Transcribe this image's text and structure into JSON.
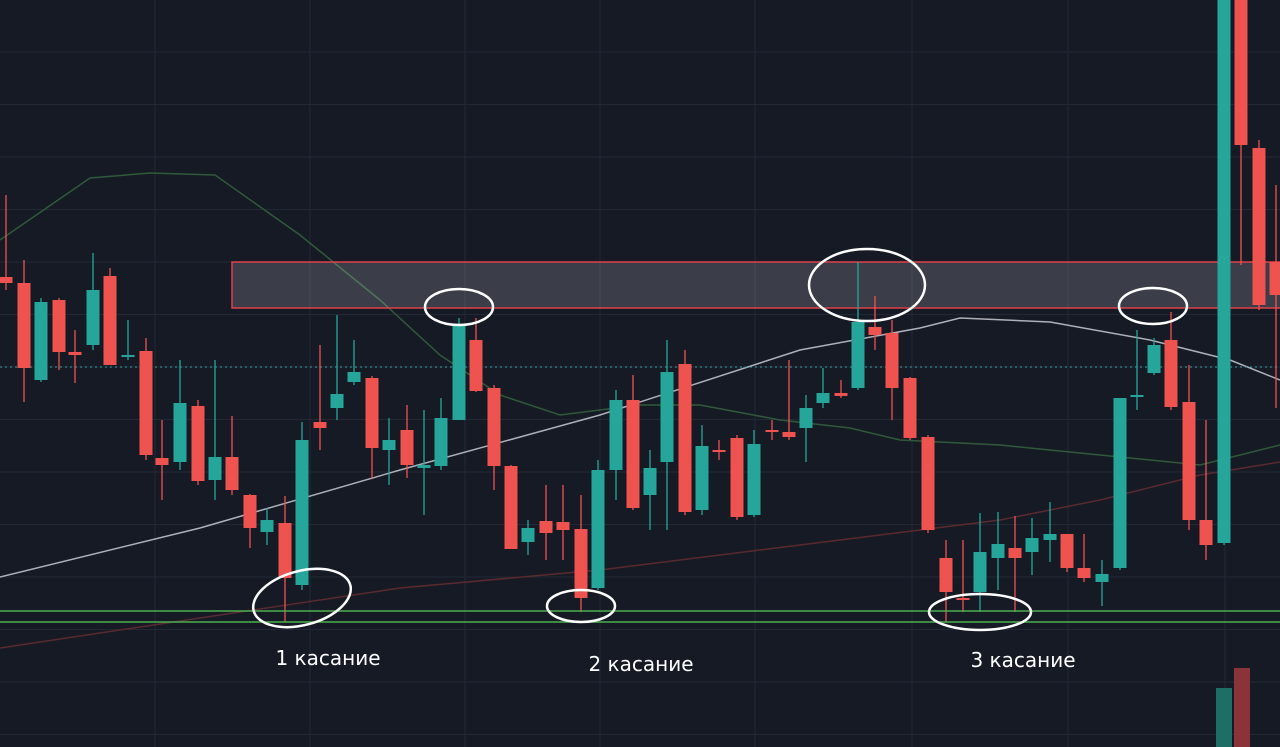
{
  "annotations": [
    "1 касание",
    "2 касание",
    "3 касание"
  ]
}
